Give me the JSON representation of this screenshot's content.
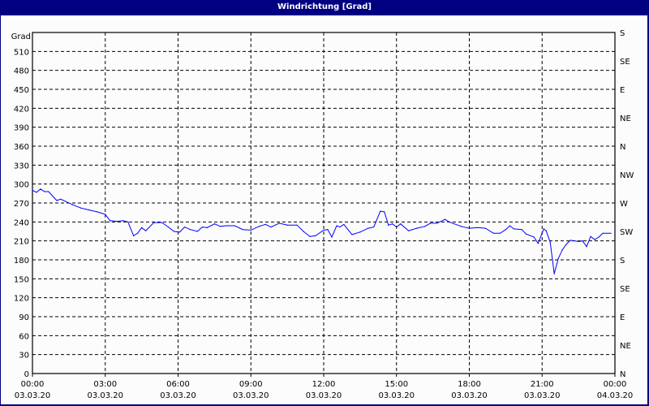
{
  "window": {
    "title": "Windrichtung [Grad]"
  },
  "chart_data": {
    "type": "line",
    "title": "Windrichtung [Grad]",
    "ylabel": "Grad",
    "ylim": [
      0,
      540
    ],
    "yticks": [
      0,
      30,
      60,
      90,
      120,
      150,
      180,
      210,
      240,
      270,
      300,
      330,
      360,
      390,
      420,
      450,
      480,
      510
    ],
    "right_ticks": [
      {
        "value": 0,
        "label": "N"
      },
      {
        "value": 45,
        "label": "NE"
      },
      {
        "value": 90,
        "label": "E"
      },
      {
        "value": 135,
        "label": "SE"
      },
      {
        "value": 180,
        "label": "S"
      },
      {
        "value": 225,
        "label": "SW"
      },
      {
        "value": 270,
        "label": "W"
      },
      {
        "value": 315,
        "label": "NW"
      },
      {
        "value": 360,
        "label": "N"
      },
      {
        "value": 405,
        "label": "NE"
      },
      {
        "value": 450,
        "label": "E"
      },
      {
        "value": 495,
        "label": "SE"
      },
      {
        "value": 540,
        "label": "S"
      }
    ],
    "xlim": [
      "03.03.20 00:00",
      "04.03.20 00:00"
    ],
    "xticks": [
      {
        "time": "00:00",
        "date": "03.03.20"
      },
      {
        "time": "03:00",
        "date": "03.03.20"
      },
      {
        "time": "06:00",
        "date": "03.03.20"
      },
      {
        "time": "09:00",
        "date": "03.03.20"
      },
      {
        "time": "12:00",
        "date": "03.03.20"
      },
      {
        "time": "15:00",
        "date": "03.03.20"
      },
      {
        "time": "18:00",
        "date": "03.03.20"
      },
      {
        "time": "21:00",
        "date": "03.03.20"
      },
      {
        "time": "00:00",
        "date": "04.03.20"
      }
    ],
    "grid": true,
    "line_color": "#0000ff",
    "series": [
      {
        "x": [
          "00:00",
          "00:10",
          "00:20",
          "00:30",
          "00:40",
          "01:00",
          "01:10",
          "01:40",
          "02:00",
          "02:20",
          "02:40",
          "03:00",
          "03:12",
          "03:30",
          "03:44",
          "03:56",
          "04:10",
          "04:20",
          "04:30",
          "04:40",
          "05:00",
          "05:20",
          "05:36",
          "05:50",
          "06:04",
          "06:16",
          "06:30",
          "06:48",
          "07:00",
          "07:12",
          "07:30",
          "07:44",
          "08:00",
          "08:20",
          "08:40",
          "09:00",
          "09:20",
          "09:36",
          "09:50",
          "10:10",
          "10:30",
          "10:54",
          "11:10",
          "11:26",
          "11:40",
          "12:00",
          "12:10",
          "12:20",
          "12:32",
          "12:40",
          "12:50",
          "13:10",
          "13:30",
          "13:50",
          "14:04",
          "14:20",
          "14:30",
          "14:40",
          "14:50",
          "15:00",
          "15:10",
          "15:30",
          "15:50",
          "16:10",
          "16:24",
          "16:40",
          "17:00",
          "17:10",
          "17:40",
          "18:00",
          "18:20",
          "18:40",
          "19:00",
          "19:16",
          "19:30",
          "19:40",
          "19:50",
          "20:10",
          "20:20",
          "20:40",
          "20:50",
          "21:04",
          "21:10",
          "21:20",
          "21:30",
          "21:40",
          "21:50",
          "22:00",
          "22:10",
          "22:30",
          "22:40",
          "22:50",
          "23:00",
          "23:10",
          "23:20",
          "23:30",
          "23:50"
        ],
        "y": [
          290,
          287,
          292,
          288,
          288,
          274,
          276,
          267,
          262,
          259,
          256,
          252,
          242,
          241,
          242,
          240,
          218,
          222,
          231,
          226,
          239,
          239,
          232,
          225,
          224,
          232,
          228,
          225,
          232,
          231,
          237,
          233,
          234,
          234,
          228,
          227,
          233,
          236,
          232,
          238,
          235,
          235,
          225,
          217,
          218,
          227,
          228,
          216,
          234,
          232,
          236,
          220,
          224,
          230,
          232,
          257,
          256,
          235,
          237,
          232,
          237,
          226,
          230,
          233,
          238,
          238,
          244,
          240,
          233,
          230,
          231,
          230,
          222,
          222,
          228,
          234,
          229,
          228,
          221,
          216,
          206,
          229,
          226,
          208,
          158,
          182,
          196,
          205,
          211,
          209,
          210,
          201,
          217,
          212,
          216,
          222,
          222
        ]
      }
    ]
  }
}
